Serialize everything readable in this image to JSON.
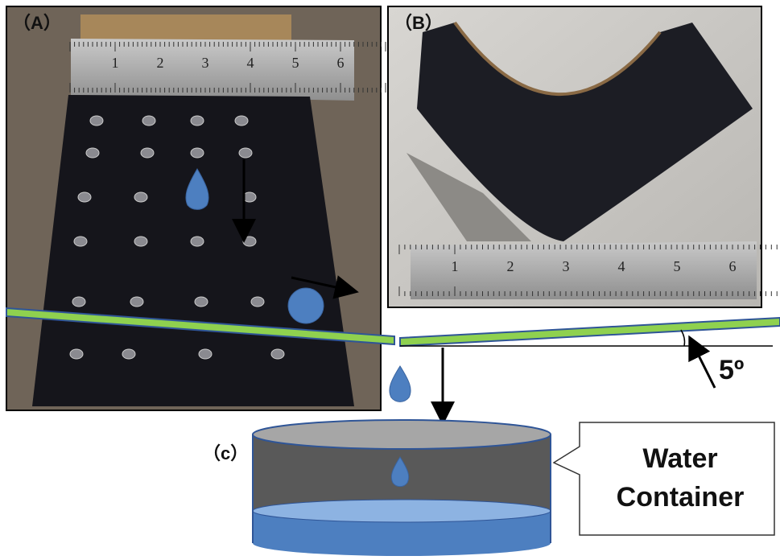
{
  "panel_a": {
    "label": "（A）",
    "ruler": [
      "1",
      "2",
      "3",
      "4",
      "5",
      "6"
    ]
  },
  "panel_b": {
    "label": "（B）",
    "ruler": [
      "1",
      "2",
      "3",
      "4",
      "5",
      "6"
    ]
  },
  "angle": {
    "label": "5º"
  },
  "panel_c": {
    "label": "（c）",
    "callout": [
      "Water",
      "Container"
    ]
  }
}
